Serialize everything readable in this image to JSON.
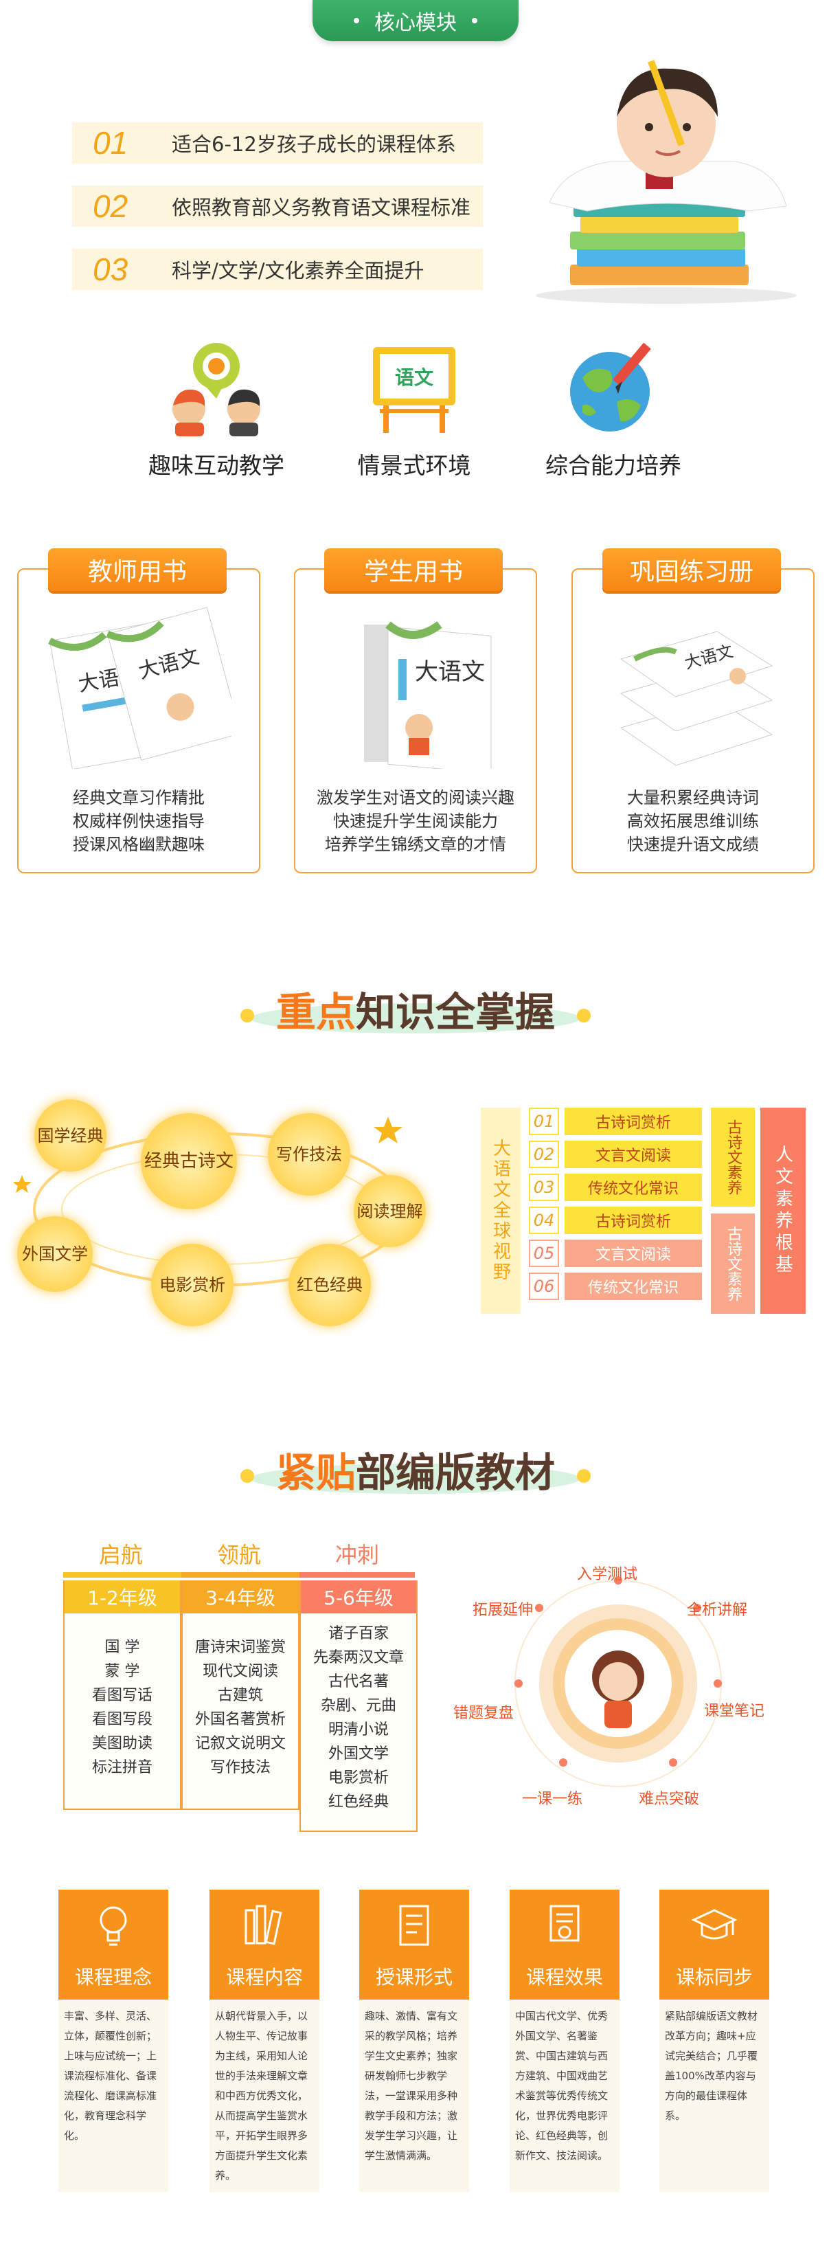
{
  "core_module": {
    "title": "核心模块"
  },
  "features": [
    {
      "num": "01",
      "text": "适合6-12岁孩子成长的课程体系"
    },
    {
      "num": "02",
      "text": "依照教育部义务教育语文课程标准"
    },
    {
      "num": "03",
      "text": "科学/文学/文化素养全面提升"
    }
  ],
  "icons": [
    {
      "name": "interactive-teaching-icon",
      "label": "趣味互动教学"
    },
    {
      "name": "chinese-board-icon",
      "label": "情景式环境",
      "board_text": "语文"
    },
    {
      "name": "globe-pen-icon",
      "label": "综合能力培养"
    }
  ],
  "books": [
    {
      "tab": "教师用书",
      "lines": [
        "经典文章习作精批",
        "权威样例快速指导",
        "授课风格幽默趣味"
      ],
      "cover_title": "大语文"
    },
    {
      "tab": "学生用书",
      "lines": [
        "激发学生对语文的阅读兴趣",
        "快速提升学生阅读能力",
        "培养学生锦绣文章的才情"
      ],
      "cover_title": "大语文"
    },
    {
      "tab": "巩固练习册",
      "lines": [
        "大量积累经典诗词",
        "高效拓展思维训练",
        "快速提升语文成绩"
      ],
      "cover_title": "大语文"
    }
  ],
  "knowledge": {
    "title_a": "重点",
    "title_b": "知识全掌握",
    "bubbles": [
      "国学经典",
      "经典古诗文",
      "写作技法",
      "阅读理解",
      "红色经典",
      "电影赏析",
      "外国文学"
    ],
    "vertical_label": "大语文全球视野",
    "rows": [
      {
        "num": "01",
        "text": "古诗词赏析"
      },
      {
        "num": "02",
        "text": "文言文阅读"
      },
      {
        "num": "03",
        "text": "传统文化常识"
      },
      {
        "num": "04",
        "text": "古诗词赏析"
      },
      {
        "num": "05",
        "text": "文言文阅读"
      },
      {
        "num": "06",
        "text": "传统文化常识"
      }
    ],
    "group1": "古诗文素养",
    "group2": "古诗文素养",
    "outer": "人文素养根基"
  },
  "textbook": {
    "title_a": "紧贴",
    "title_b": "部编版教材",
    "grades": [
      {
        "tag": "启航",
        "head": "1-2年级",
        "items": [
          "国 学",
          "蒙 学",
          "看图写话",
          "看图写段",
          "美图助读",
          "标注拼音"
        ]
      },
      {
        "tag": "领航",
        "head": "3-4年级",
        "items": [
          "唐诗宋词鉴赏",
          "现代文阅读",
          "古建筑",
          "外国名著赏析",
          "记叙文说明文",
          "写作技法"
        ]
      },
      {
        "tag": "冲刺",
        "head": "5-6年级",
        "items": [
          "诸子百家",
          "先秦两汉文章",
          "古代名著",
          "杂剧、元曲",
          "明清小说",
          "外国文学",
          "电影赏析",
          "红色经典"
        ]
      }
    ],
    "ring": [
      "入学测试",
      "全析讲解",
      "课堂笔记",
      "难点突破",
      "一课一练",
      "错题复盘",
      "拓展延伸"
    ]
  },
  "bottom_cards": [
    {
      "title": "课程理念",
      "icon": "lightbulb-icon",
      "text": "丰富、多样、灵活、立体，颠覆性创新；上味与应试统一；上课流程标准化、备课流程化、磨课高标准化，教育理念科学化。"
    },
    {
      "title": "课程内容",
      "icon": "books-icon",
      "text": "从朝代背景入手，以人物生平、传记故事为主线，采用知人论世的手法来理解文章和中西方优秀文化，从而提高学生鉴赏水平，开拓学生眼界多方面提升学生文化素养。"
    },
    {
      "title": "授课形式",
      "icon": "document-icon",
      "text": "趣味、激情、富有文采的教学风格；培养学生文史素养；独家研发翰师七步教学法，一堂课采用多种教学手段和方法；激发学生学习兴趣，让学生激情满满。"
    },
    {
      "title": "课程效果",
      "icon": "certificate-icon",
      "text": "中国古代文学、优秀外国文学、名著鉴赏、中国古建筑与西方建筑、中国戏曲艺术鉴赏等优秀传统文化，世界优秀电影评论、红色经典等，创新作文、技法阅读。"
    },
    {
      "title": "课标同步",
      "icon": "graduation-cap-icon",
      "text": "紧贴部编版语文教材改革方向；趣味+应试完美结合；几乎覆盖100%改革内容与方向的最佳课程体系。"
    }
  ],
  "colors": {
    "orange": "#f7931a",
    "green": "#2fa45d",
    "yellow": "#fde23a",
    "salmon": "#f97e62"
  }
}
